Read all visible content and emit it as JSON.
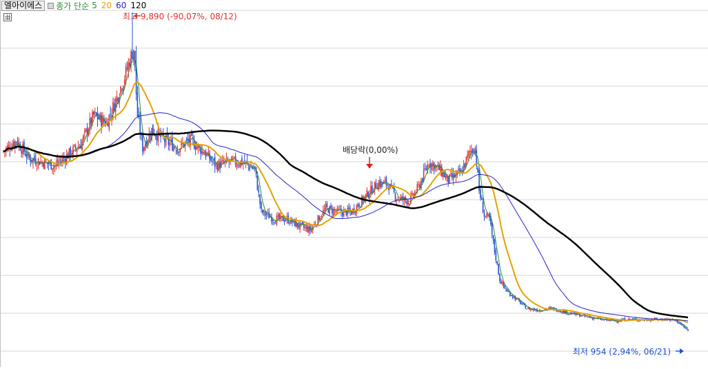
{
  "header": {
    "stock_name": "엘아이에스",
    "indicator_label": "종가 단순",
    "ma_periods": [
      "5",
      "20",
      "60",
      "120"
    ]
  },
  "colors": {
    "up": "#e03030",
    "down": "#2050d0",
    "ma5": "#2b8a3e",
    "ma20": "#e2a100",
    "ma60": "#2222c8",
    "ma120": "#000000",
    "grid": "#d4d4d4"
  },
  "annotations": {
    "high": "최고 9,890 (-90,07%, 08/12)",
    "low": "최저 954 (2,94%, 06/21)",
    "dividend": "배당락(0,00%)"
  },
  "chart_data": {
    "type": "candlestick",
    "y_range": [
      500,
      9890
    ],
    "grid": true,
    "high_price": 9890,
    "low_price": 954,
    "close_anchors": [
      [
        0,
        6000
      ],
      [
        10,
        6300
      ],
      [
        20,
        5800
      ],
      [
        30,
        5700
      ],
      [
        40,
        5600
      ],
      [
        50,
        5900
      ],
      [
        60,
        6200
      ],
      [
        70,
        7000
      ],
      [
        80,
        6800
      ],
      [
        88,
        7500
      ],
      [
        95,
        8200
      ],
      [
        101,
        8900
      ],
      [
        104,
        7000
      ],
      [
        108,
        6100
      ],
      [
        115,
        6600
      ],
      [
        125,
        6300
      ],
      [
        135,
        6100
      ],
      [
        145,
        6300
      ],
      [
        155,
        6000
      ],
      [
        165,
        5600
      ],
      [
        175,
        5700
      ],
      [
        185,
        5700
      ],
      [
        195,
        5500
      ],
      [
        200,
        4300
      ],
      [
        210,
        4100
      ],
      [
        220,
        4100
      ],
      [
        230,
        3900
      ],
      [
        238,
        3800
      ],
      [
        244,
        4100
      ],
      [
        250,
        4400
      ],
      [
        260,
        4300
      ],
      [
        270,
        4300
      ],
      [
        280,
        4700
      ],
      [
        290,
        5100
      ],
      [
        298,
        5100
      ],
      [
        305,
        4700
      ],
      [
        315,
        4600
      ],
      [
        322,
        5000
      ],
      [
        330,
        5700
      ],
      [
        338,
        5500
      ],
      [
        345,
        5200
      ],
      [
        355,
        5400
      ],
      [
        362,
        6000
      ],
      [
        366,
        6100
      ],
      [
        369,
        4900
      ],
      [
        373,
        4200
      ],
      [
        377,
        4100
      ],
      [
        381,
        3200
      ],
      [
        385,
        2400
      ],
      [
        390,
        2100
      ],
      [
        398,
        1850
      ],
      [
        406,
        1600
      ],
      [
        415,
        1550
      ],
      [
        425,
        1600
      ],
      [
        435,
        1500
      ],
      [
        445,
        1420
      ],
      [
        455,
        1350
      ],
      [
        465,
        1280
      ],
      [
        475,
        1250
      ],
      [
        485,
        1300
      ],
      [
        495,
        1280
      ],
      [
        505,
        1290
      ],
      [
        515,
        1300
      ],
      [
        522,
        1250
      ],
      [
        527,
        1100
      ],
      [
        531,
        980
      ]
    ],
    "spikes": [
      {
        "index": 100,
        "high": 9890
      },
      {
        "index": 103,
        "high": 8950
      }
    ],
    "moving_averages": [
      "5",
      "20",
      "60",
      "120"
    ]
  }
}
